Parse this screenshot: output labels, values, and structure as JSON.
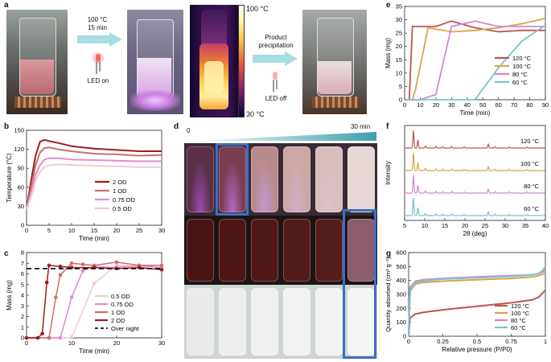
{
  "panels": {
    "a": {
      "label": "a",
      "step1_line1": "100 °C",
      "step1_line2": "15 min",
      "led_on": "LED on",
      "heat_max": "100 °C",
      "heat_min": "30 °C",
      "step2_line1": "Product",
      "step2_line2": "precipitation",
      "led_off": "LED off"
    },
    "b": {
      "label": "b"
    },
    "c": {
      "label": "c"
    },
    "d": {
      "label": "d",
      "time_start": "0",
      "time_end": "30 min"
    },
    "e": {
      "label": "e"
    },
    "f": {
      "label": "f"
    },
    "g": {
      "label": "g"
    }
  },
  "chart_data": [
    {
      "id": "b",
      "type": "line",
      "xlabel": "Time (min)",
      "ylabel": "Temperature (°C)",
      "xlim": [
        0,
        30
      ],
      "ylim": [
        0,
        150
      ],
      "xticks": [
        0,
        5,
        10,
        15,
        20,
        25,
        30
      ],
      "yticks": [
        0,
        30,
        60,
        90,
        120,
        150
      ],
      "legend_position": "right",
      "series": [
        {
          "name": "2 OD",
          "color": "#a01d1d",
          "x": [
            0,
            1,
            2,
            3,
            4,
            5,
            7,
            10,
            15,
            20,
            25,
            30
          ],
          "y": [
            25,
            70,
            110,
            132,
            135,
            133,
            130,
            125,
            121,
            119,
            117,
            117
          ]
        },
        {
          "name": "1 OD",
          "color": "#c8706c",
          "x": [
            0,
            1,
            2,
            3,
            4,
            5,
            7,
            10,
            15,
            20,
            25,
            30
          ],
          "y": [
            25,
            60,
            95,
            115,
            122,
            123,
            120,
            117,
            113,
            112,
            110,
            111
          ]
        },
        {
          "name": "0.75 OD",
          "color": "#e28ad4",
          "x": [
            0,
            1,
            2,
            3,
            4,
            5,
            7,
            10,
            15,
            20,
            25,
            30
          ],
          "y": [
            25,
            50,
            80,
            95,
            104,
            106,
            106,
            104,
            103,
            102,
            101,
            101
          ]
        },
        {
          "name": "0.5 OD",
          "color": "#f5c8cc",
          "x": [
            0,
            1,
            2,
            3,
            4,
            5,
            7,
            10,
            15,
            20,
            25,
            30
          ],
          "y": [
            25,
            45,
            70,
            85,
            92,
            95,
            96,
            95,
            94,
            93,
            92,
            92
          ]
        }
      ]
    },
    {
      "id": "c",
      "type": "line",
      "xlabel": "Time (min)",
      "ylabel": "Mass (mg)",
      "xlim": [
        0,
        30
      ],
      "ylim": [
        0,
        8
      ],
      "xticks": [
        0,
        10,
        20,
        30
      ],
      "yticks": [
        0,
        1,
        2,
        3,
        4,
        5,
        6,
        7,
        8
      ],
      "legend_position": "bottom-right",
      "reference": {
        "name": "Over night",
        "y": 6.5
      },
      "series": [
        {
          "name": "0.5 OD",
          "color": "#f5c8cc",
          "x": [
            0,
            5,
            10,
            15,
            20,
            25,
            30
          ],
          "y": [
            0,
            0,
            0,
            5.1,
            6.8,
            6.7,
            6.6
          ]
        },
        {
          "name": "0.75 OD",
          "color": "#e28ad4",
          "x": [
            0,
            5,
            7.5,
            10,
            12.5,
            15,
            20,
            25,
            30
          ],
          "y": [
            0,
            0,
            0,
            3.8,
            6.3,
            6.7,
            6.6,
            6.8,
            6.6
          ]
        },
        {
          "name": "1 OD",
          "color": "#c8706c",
          "x": [
            0,
            5,
            6.5,
            7.5,
            10,
            12.5,
            15,
            20,
            25,
            30
          ],
          "y": [
            0,
            0,
            3.8,
            5.9,
            7.0,
            6.9,
            6.8,
            7.1,
            6.8,
            6.8
          ]
        },
        {
          "name": "2 OD",
          "color": "#a01d1d",
          "x": [
            0,
            2.5,
            3.5,
            4.5,
            5,
            7.5,
            10,
            15,
            20,
            25,
            30
          ],
          "y": [
            0,
            0,
            0.4,
            5.2,
            6.8,
            6.7,
            6.6,
            6.6,
            6.5,
            6.6,
            6.4
          ]
        }
      ]
    },
    {
      "id": "e",
      "type": "line",
      "xlabel": "Time (min)",
      "ylabel": "Mass (mg)",
      "xlim": [
        0,
        90
      ],
      "ylim": [
        0,
        35
      ],
      "xticks": [
        0,
        10,
        20,
        30,
        40,
        50,
        60,
        70,
        80,
        90
      ],
      "yticks": [
        0,
        5,
        10,
        15,
        20,
        25,
        30,
        35
      ],
      "legend_position": "bottom-right",
      "series": [
        {
          "name": "120 °C",
          "color": "#c0544e",
          "x": [
            0,
            3,
            5,
            10,
            20,
            30,
            45,
            60,
            75,
            90
          ],
          "y": [
            0,
            0,
            27.5,
            27.5,
            27.5,
            29.5,
            27,
            25.5,
            26,
            26
          ]
        },
        {
          "name": "100 °C",
          "color": "#d9a548",
          "x": [
            0,
            5,
            7,
            15,
            30,
            45,
            60,
            75,
            90
          ],
          "y": [
            0,
            0,
            4,
            27,
            25.5,
            26,
            27,
            28.5,
            30.5
          ]
        },
        {
          "name": "80 °C",
          "color": "#d585d2",
          "x": [
            0,
            10,
            15,
            20,
            30,
            45,
            60,
            75,
            90
          ],
          "y": [
            0,
            0,
            1,
            2,
            27.5,
            29.5,
            27.5,
            27.5,
            27.5
          ]
        },
        {
          "name": "60 °C",
          "color": "#79c4cc",
          "x": [
            0,
            30,
            45,
            60,
            75,
            90
          ],
          "y": [
            0,
            0,
            0,
            12,
            22,
            28
          ]
        }
      ]
    },
    {
      "id": "f",
      "type": "line",
      "xlabel": "2θ (deg)",
      "ylabel": "Intensity",
      "xlim": [
        5,
        40
      ],
      "xticks": [
        5,
        10,
        15,
        20,
        25,
        30,
        35,
        40
      ],
      "legend_position": "inline-right",
      "series": [
        {
          "name": "120 °C",
          "color": "#c0544e"
        },
        {
          "name": "100 °C",
          "color": "#d9a548"
        },
        {
          "name": "80 °C",
          "color": "#d585d2"
        },
        {
          "name": "60 °C",
          "color": "#79c4cc"
        }
      ],
      "peaks": [
        [
          7.2,
          1.0
        ],
        [
          8.3,
          0.45
        ],
        [
          10.2,
          0.12
        ],
        [
          12.8,
          0.1
        ],
        [
          14.5,
          0.08
        ],
        [
          16.7,
          0.09
        ],
        [
          19.8,
          0.07
        ],
        [
          25.8,
          0.22
        ],
        [
          27.5,
          0.08
        ],
        [
          31.0,
          0.07
        ],
        [
          35.5,
          0.06
        ]
      ]
    },
    {
      "id": "g",
      "type": "line",
      "xlabel": "Relative pressure (P/P0)",
      "ylabel": "Quantity adsorbed (cm³ g⁻¹)",
      "xlim": [
        0,
        1
      ],
      "ylim": [
        0,
        600
      ],
      "xticks": [
        "0",
        "0.25",
        "0.5",
        "0.75",
        "1"
      ],
      "yticks": [
        0,
        100,
        200,
        300,
        400,
        500,
        600
      ],
      "legend_position": "bottom-right",
      "series": [
        {
          "name": "120 °C",
          "color": "#c0544e",
          "x": [
            0,
            0.01,
            0.05,
            0.1,
            0.25,
            0.5,
            0.75,
            0.9,
            0.95,
            0.98,
            1
          ],
          "y": [
            0,
            130,
            160,
            170,
            190,
            215,
            240,
            260,
            280,
            310,
            330
          ]
        },
        {
          "name": "100 °C",
          "color": "#d9a548",
          "x": [
            0,
            0.01,
            0.05,
            0.1,
            0.25,
            0.5,
            0.75,
            0.9,
            0.95,
            0.98,
            1
          ],
          "y": [
            0,
            320,
            375,
            385,
            395,
            405,
            415,
            425,
            435,
            445,
            455
          ]
        },
        {
          "name": "80 °C",
          "color": "#d585d2",
          "x": [
            0,
            0.01,
            0.05,
            0.1,
            0.25,
            0.5,
            0.75,
            0.9,
            0.95,
            0.98,
            1
          ],
          "y": [
            0,
            350,
            395,
            405,
            415,
            425,
            435,
            440,
            450,
            460,
            480
          ]
        },
        {
          "name": "60 °C",
          "color": "#79c4cc",
          "x": [
            0,
            0.01,
            0.05,
            0.1,
            0.25,
            0.5,
            0.75,
            0.9,
            0.95,
            0.98,
            1
          ],
          "y": [
            0,
            330,
            385,
            395,
            410,
            420,
            430,
            440,
            450,
            470,
            500
          ]
        }
      ]
    }
  ]
}
